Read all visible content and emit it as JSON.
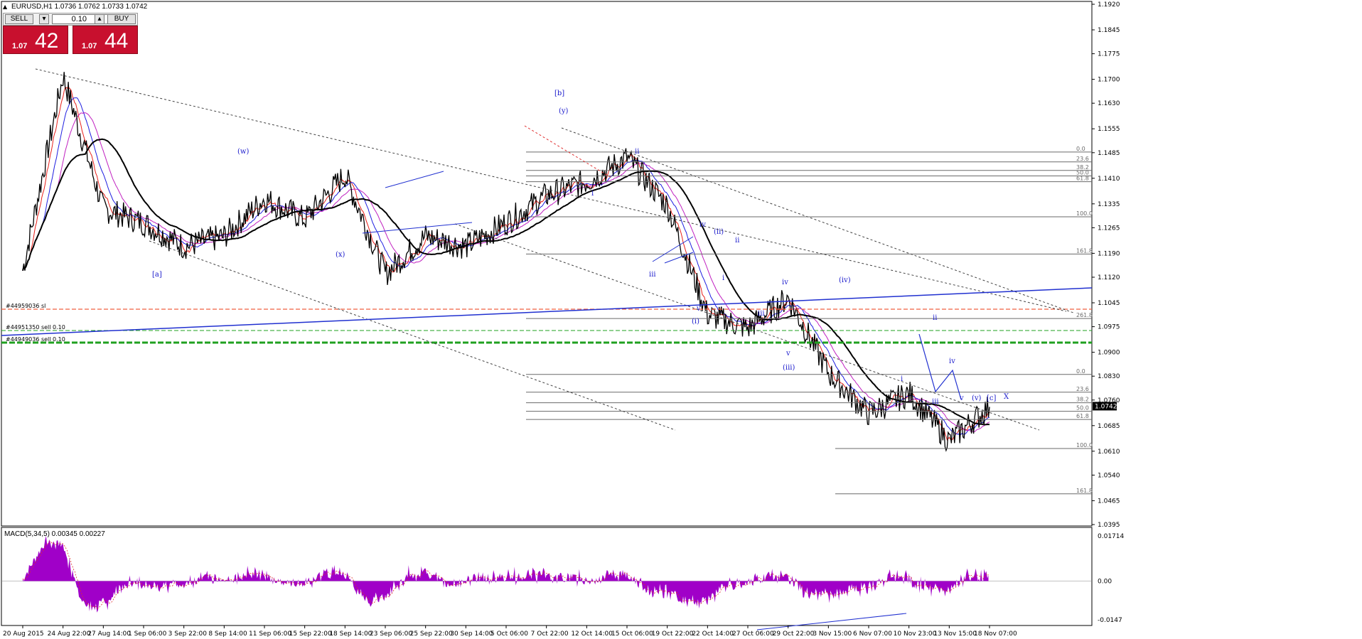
{
  "header": {
    "symbol_info": "EURUSD,H1  1.0736 1.0762 1.0733 1.0742",
    "macd_info": "MACD(5,34,5) 0.00345 0.00227"
  },
  "trade_panel": {
    "sell_label": "SELL",
    "buy_label": "BUY",
    "volume": "0.10",
    "sell_small": "1.07",
    "sell_big": "42",
    "buy_small": "1.07",
    "buy_big": "44",
    "sell_color": "#c8102e",
    "buy_color": "#c8102e"
  },
  "colors": {
    "price": "#000000",
    "ma_red": "#e8201a",
    "ma_blue": "#1e1ee0",
    "ma_magenta": "#c020c0",
    "ma_black": "#000000",
    "histogram": "#a000c8",
    "wave_labels": "#1a1acc",
    "trendline": "#2030d0",
    "fib": "#6a6a6a",
    "order_red": "#f06040",
    "order_green": "#20a020",
    "current_price_bg": "#000000"
  },
  "price_axis": {
    "ticks": [
      "1.1920",
      "1.1845",
      "1.1775",
      "1.1700",
      "1.1630",
      "1.1555",
      "1.1485",
      "1.1410",
      "1.1335",
      "1.1265",
      "1.1190",
      "1.1120",
      "1.1045",
      "1.0975",
      "1.0900",
      "1.0830",
      "1.0760",
      "1.0685",
      "1.0610",
      "1.0540",
      "1.0465",
      "1.0395"
    ],
    "current_price": "1.0742"
  },
  "macd_axis": {
    "ticks": [
      "0.01714",
      "0.00",
      "-0.0147"
    ]
  },
  "time_axis": {
    "labels": [
      "20 Aug 2015",
      "24 Aug 22:00",
      "27 Aug 14:00",
      "1 Sep 06:00",
      "3 Sep 22:00",
      "8 Sep 14:00",
      "11 Sep 06:00",
      "15 Sep 22:00",
      "18 Sep 14:00",
      "23 Sep 06:00",
      "25 Sep 22:00",
      "30 Sep 14:00",
      "5 Oct 06:00",
      "7 Oct 22:00",
      "12 Oct 14:00",
      "15 Oct 06:00",
      "19 Oct 22:00",
      "22 Oct 14:00",
      "27 Oct 06:00",
      "29 Oct 22:00",
      "3 Nov 15:00",
      "6 Nov 07:00",
      "10 Nov 23:00",
      "13 Nov 15:00",
      "18 Nov 07:00"
    ]
  },
  "fib_upper": {
    "labels": [
      "0.0",
      "23.6",
      "38.2",
      "50.0",
      "61.8",
      "100.0",
      "161.8",
      "261.8"
    ]
  },
  "fib_lower": {
    "labels": [
      "0.0",
      "23.6",
      "38.2",
      "50.0",
      "61.8",
      "100.0",
      "161.8"
    ]
  },
  "orders": {
    "order1": "#44959036 sl",
    "order2": "#44951350 sell 0.10",
    "order3": "#44949036 sell 0.10"
  },
  "wave_labels": {
    "a": "[a]",
    "b": "[b]",
    "c": "[c]",
    "w": "(w)",
    "x": "(x)",
    "y": "(y)",
    "X": "X",
    "i": "i",
    "ii": "ii",
    "iii": "iii",
    "iv": "iv",
    "v": "v",
    "pi": "(i)",
    "pii": "(ii)",
    "piii": "(iii)",
    "piv": "(iv)",
    "pv": "(v)"
  },
  "chart_data": {
    "type": "line",
    "title": "EURUSD,H1",
    "ohlc_last": {
      "open": 1.0736,
      "high": 1.0762,
      "low": 1.0733,
      "close": 1.0742
    },
    "x": [
      "20 Aug 2015",
      "24 Aug 22:00",
      "27 Aug 14:00",
      "1 Sep 06:00",
      "3 Sep 22:00",
      "8 Sep 14:00",
      "11 Sep 06:00",
      "15 Sep 22:00",
      "18 Sep 14:00",
      "23 Sep 06:00",
      "25 Sep 22:00",
      "30 Sep 14:00",
      "5 Oct 06:00",
      "7 Oct 22:00",
      "12 Oct 14:00",
      "15 Oct 06:00",
      "19 Oct 22:00",
      "22 Oct 14:00",
      "27 Oct 06:00",
      "29 Oct 22:00",
      "3 Nov 15:00",
      "6 Nov 07:00",
      "10 Nov 23:00",
      "13 Nov 15:00",
      "18 Nov 07:00"
    ],
    "series": [
      {
        "values": [
          1.114,
          1.171,
          1.132,
          1.128,
          1.121,
          1.124,
          1.135,
          1.129,
          1.142,
          1.113,
          1.124,
          1.121,
          1.128,
          1.136,
          1.14,
          1.147,
          1.133,
          1.101,
          1.097,
          1.106,
          1.084,
          1.072,
          1.078,
          1.064,
          1.074
        ]
      }
    ],
    "ylim": [
      1.0395,
      1.192
    ],
    "macd": {
      "name": "MACD(5,34,5)",
      "main": 0.00345,
      "signal": 0.00227,
      "ylim": [
        -0.0147,
        0.01714
      ]
    }
  }
}
